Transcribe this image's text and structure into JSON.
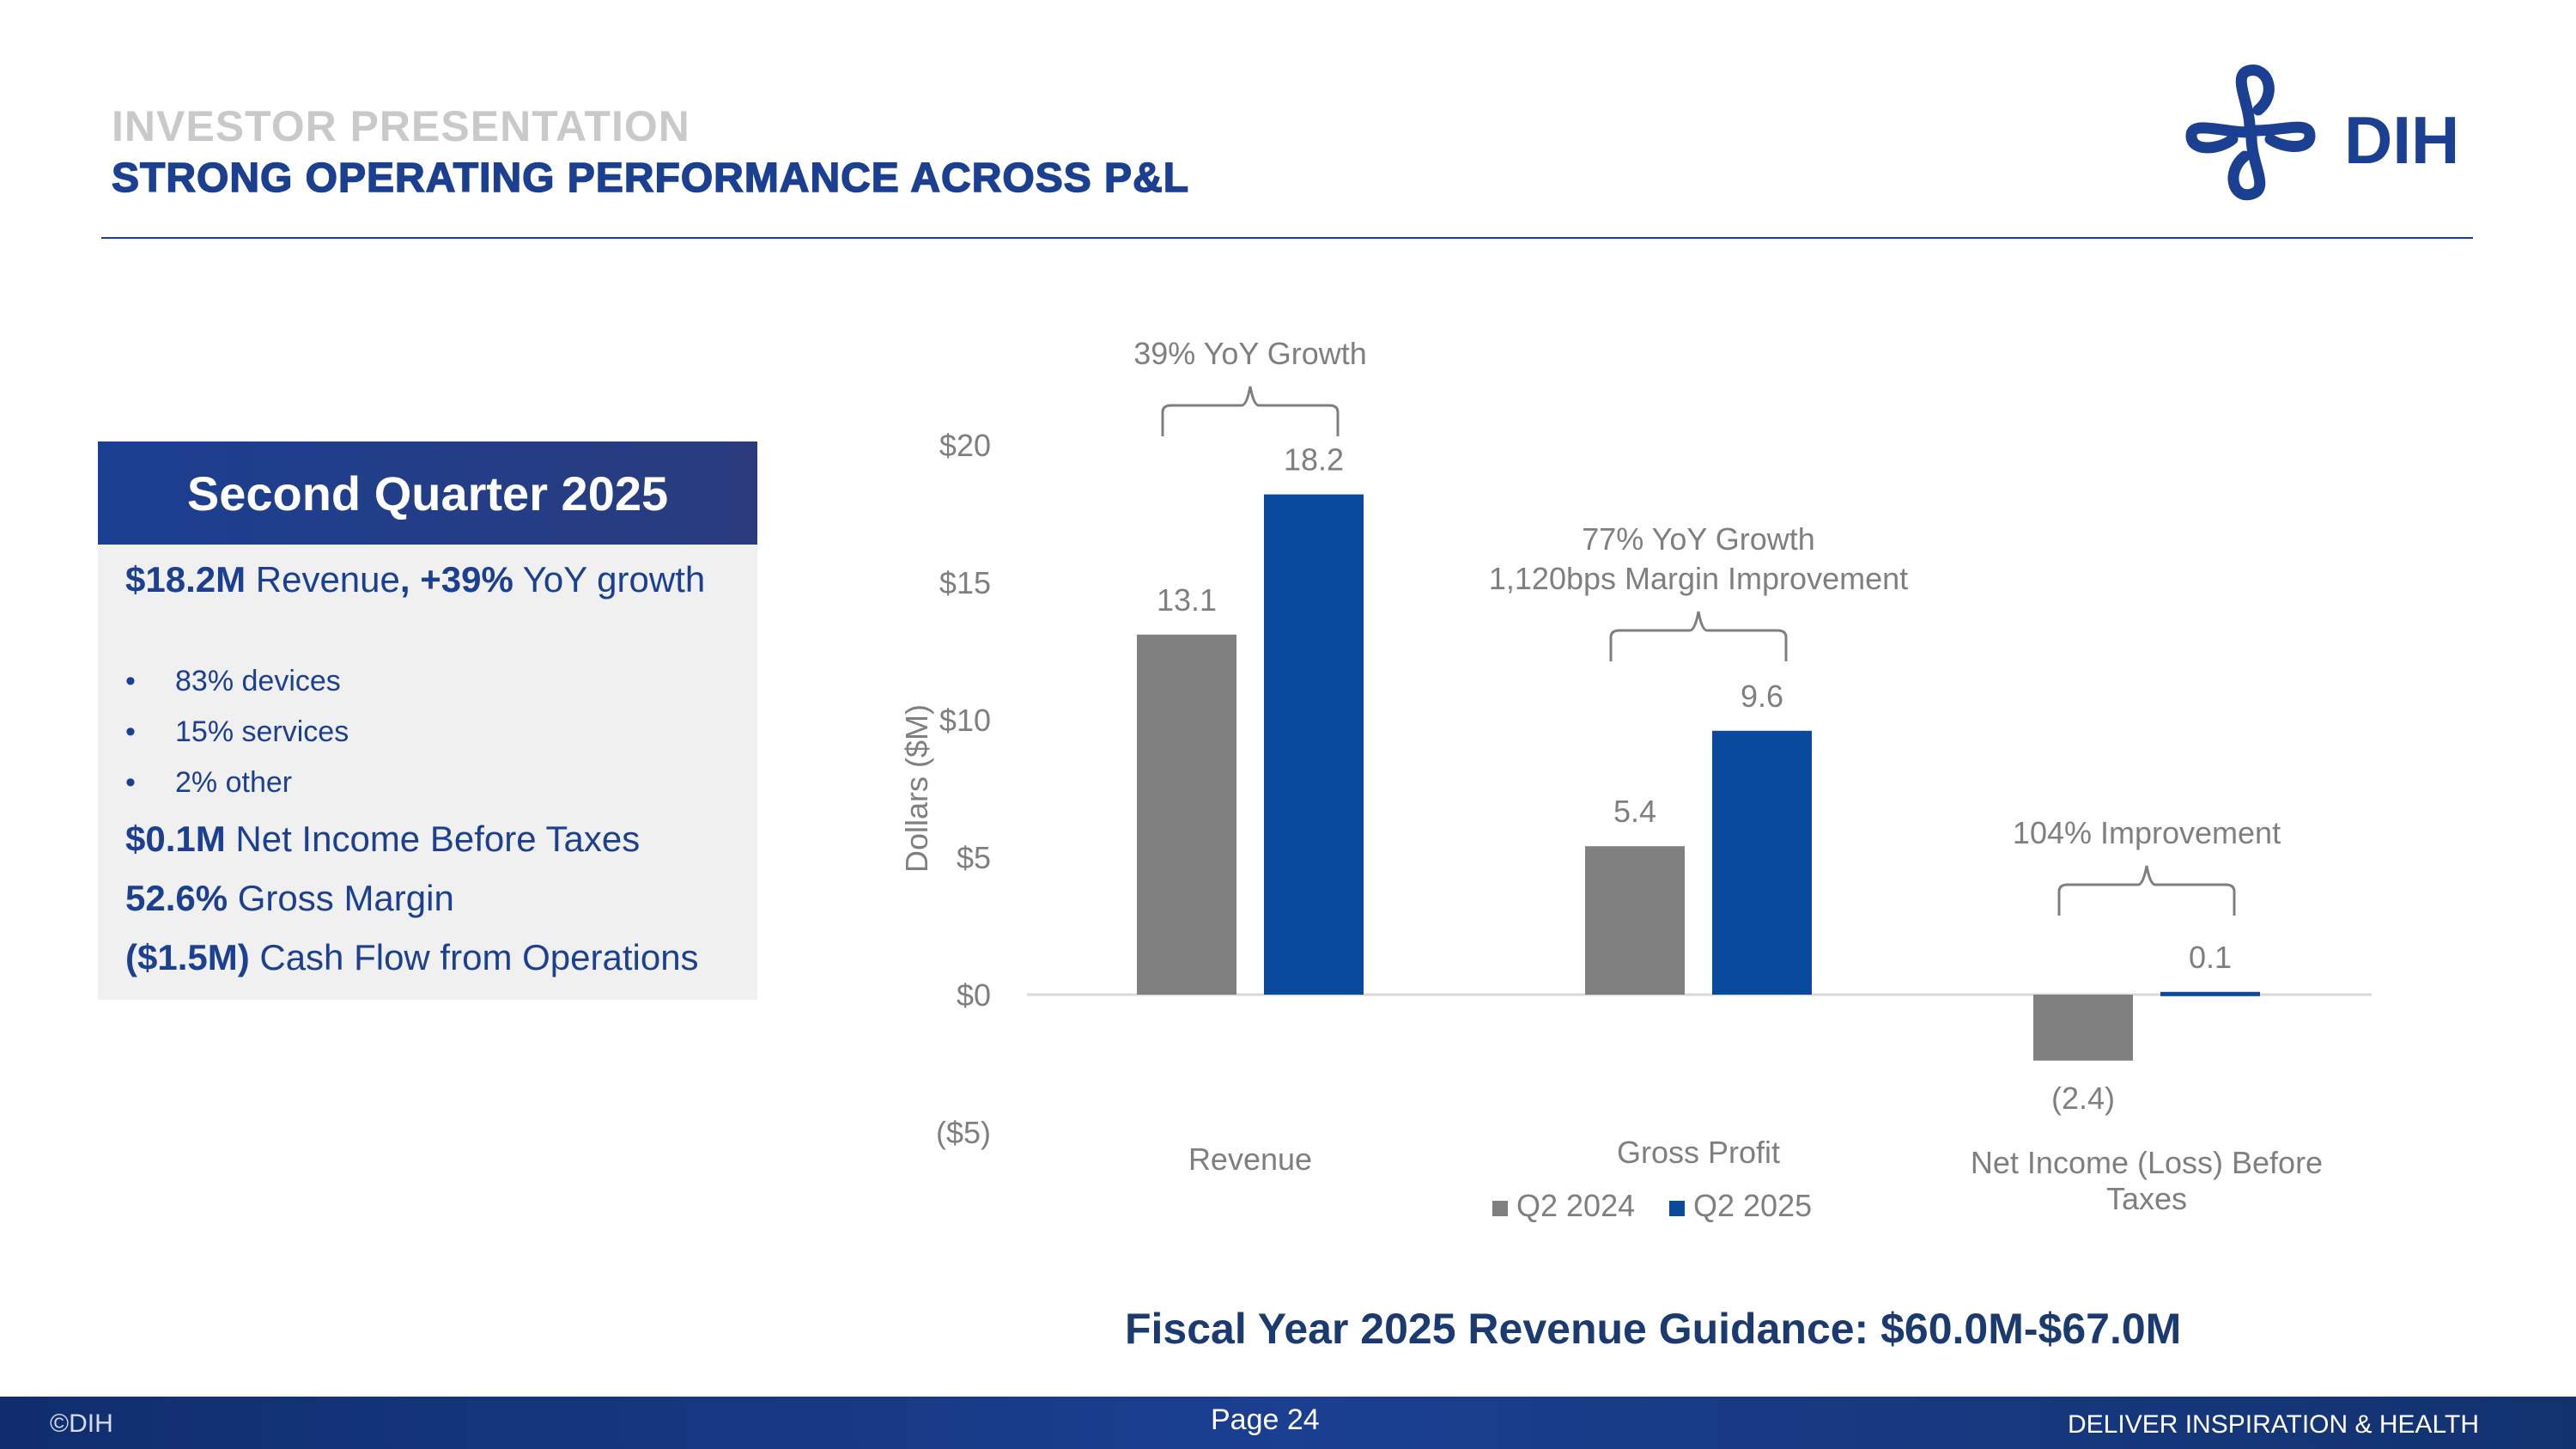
{
  "header": {
    "subtitle": "INVESTOR PRESENTATION",
    "title": "STRONG OPERATING PERFORMANCE ACROSS P&L",
    "logo_text": "DIH"
  },
  "panel": {
    "title": "Second Quarter 2025",
    "revenue": {
      "value": "$18.2M",
      "mid": " Revenue",
      "pct": ", +39%",
      "tail": " YoY growth"
    },
    "bullets": [
      "83% devices",
      "15% services",
      "2% other"
    ],
    "bullet_mark": "•",
    "metrics": [
      {
        "value": "$0.1M",
        "label": " Net Income Before Taxes"
      },
      {
        "value": "52.6%",
        "label": " Gross Margin"
      },
      {
        "value": "($1.5M)",
        "label": " Cash Flow from Operations"
      }
    ]
  },
  "chart_data": {
    "type": "bar",
    "title": "",
    "xlabel": "",
    "ylabel": "Dollars ($M)",
    "ylim": [
      -5,
      20
    ],
    "yticks": [
      20,
      15,
      10,
      5,
      0,
      -5
    ],
    "ytick_labels": [
      "$20",
      "$15",
      "$10",
      "$5",
      "$0",
      "($5)"
    ],
    "categories": [
      "Revenue",
      "Gross Profit",
      "Net Income (Loss) Before Taxes"
    ],
    "series": [
      {
        "name": "Q2 2024",
        "color": "#808080",
        "values": [
          13.1,
          5.4,
          -2.4
        ],
        "labels": [
          "13.1",
          "5.4",
          "(2.4)"
        ]
      },
      {
        "name": "Q2 2025",
        "color": "#0a4a9c",
        "values": [
          18.2,
          9.6,
          0.1
        ],
        "labels": [
          "18.2",
          "9.6",
          "0.1"
        ]
      }
    ],
    "annotations": [
      [
        "39% YoY Growth"
      ],
      [
        "77% YoY Growth",
        "1,120bps Margin Improvement"
      ],
      [
        "104% Improvement"
      ]
    ],
    "legend_position": "bottom-center"
  },
  "guidance": "Fiscal Year 2025 Revenue Guidance: $60.0M-$67.0M",
  "footer": {
    "copyright": "©DIH",
    "page": "Page 24",
    "tagline": "DELIVER INSPIRATION & HEALTH"
  },
  "colors": {
    "brand": "#1b3f91",
    "gray_bar": "#808080",
    "blue_bar": "#0a4a9c"
  }
}
